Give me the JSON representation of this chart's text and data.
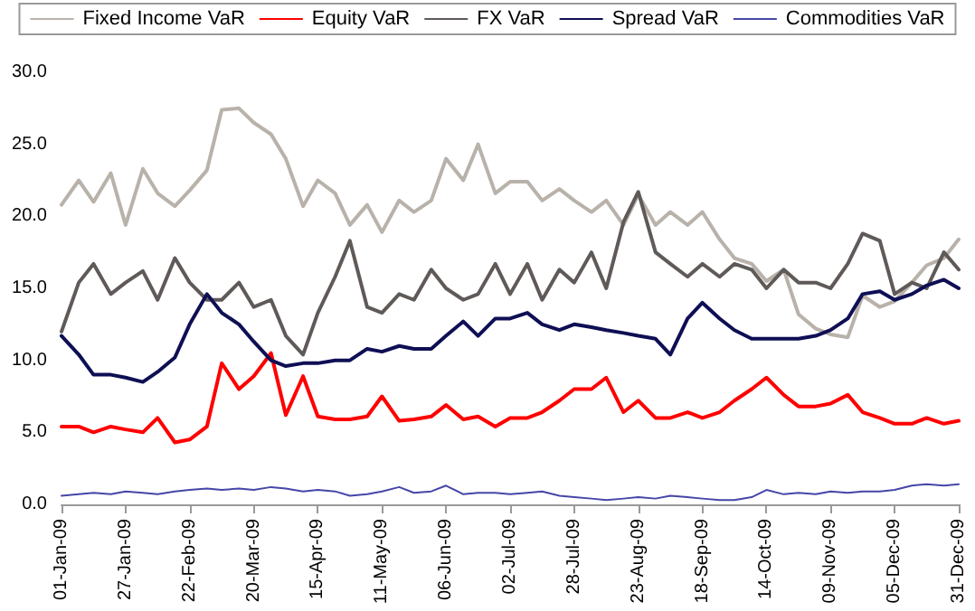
{
  "chart_data": {
    "type": "line",
    "legend": "top",
    "grid": false,
    "marker": "none",
    "line_style": "solid",
    "x": [
      "2009-01-01",
      "2009-01-08",
      "2009-01-14",
      "2009-01-21",
      "2009-01-27",
      "2009-02-03",
      "2009-02-09",
      "2009-02-16",
      "2009-02-22",
      "2009-03-01",
      "2009-03-07",
      "2009-03-14",
      "2009-03-20",
      "2009-03-27",
      "2009-04-02",
      "2009-04-09",
      "2009-04-15",
      "2009-04-22",
      "2009-04-28",
      "2009-05-05",
      "2009-05-11",
      "2009-05-18",
      "2009-05-24",
      "2009-05-31",
      "2009-06-06",
      "2009-06-13",
      "2009-06-19",
      "2009-06-26",
      "2009-07-02",
      "2009-07-09",
      "2009-07-15",
      "2009-07-22",
      "2009-07-28",
      "2009-08-04",
      "2009-08-10",
      "2009-08-17",
      "2009-08-23",
      "2009-08-30",
      "2009-09-05",
      "2009-09-12",
      "2009-09-18",
      "2009-09-25",
      "2009-10-01",
      "2009-10-08",
      "2009-10-14",
      "2009-10-21",
      "2009-10-27",
      "2009-11-03",
      "2009-11-09",
      "2009-11-16",
      "2009-11-22",
      "2009-11-29",
      "2009-12-05",
      "2009-12-12",
      "2009-12-18",
      "2009-12-25",
      "2009-12-31"
    ],
    "xlim": [
      "2009-01-01",
      "2009-12-31"
    ],
    "xticks": [
      {
        "value": "2009-01-01",
        "label": "01-Jan-09"
      },
      {
        "value": "2009-01-27",
        "label": "27-Jan-09"
      },
      {
        "value": "2009-02-22",
        "label": "22-Feb-09"
      },
      {
        "value": "2009-03-20",
        "label": "20-Mar-09"
      },
      {
        "value": "2009-04-15",
        "label": "15-Apr-09"
      },
      {
        "value": "2009-05-11",
        "label": "11-May-09"
      },
      {
        "value": "2009-06-06",
        "label": "06-Jun-09"
      },
      {
        "value": "2009-07-02",
        "label": "02-Jul-09"
      },
      {
        "value": "2009-07-28",
        "label": "28-Jul-09"
      },
      {
        "value": "2009-08-23",
        "label": "23-Aug-09"
      },
      {
        "value": "2009-09-18",
        "label": "18-Sep-09"
      },
      {
        "value": "2009-10-14",
        "label": "14-Oct-09"
      },
      {
        "value": "2009-11-09",
        "label": "09-Nov-09"
      },
      {
        "value": "2009-12-05",
        "label": "05-Dec-09"
      },
      {
        "value": "2009-12-31",
        "label": "31-Dec-09"
      }
    ],
    "ylim": [
      0,
      30
    ],
    "yticks": [
      {
        "value": 0,
        "label": "0.0"
      },
      {
        "value": 5,
        "label": "5.0"
      },
      {
        "value": 10,
        "label": "10.0"
      },
      {
        "value": 15,
        "label": "15.0"
      },
      {
        "value": 20,
        "label": "20.0"
      },
      {
        "value": 25,
        "label": "25.0"
      },
      {
        "value": 30,
        "label": "30.0"
      }
    ],
    "series": [
      {
        "name": "Fixed Income VaR",
        "color": "#b8b2aa",
        "values": [
          20.8,
          22.5,
          21.0,
          23.0,
          19.4,
          23.3,
          21.6,
          20.7,
          21.8,
          23.2,
          27.4,
          27.5,
          26.5,
          25.7,
          24.0,
          20.7,
          22.5,
          21.6,
          19.4,
          20.8,
          18.9,
          21.1,
          20.3,
          21.1,
          24.0,
          22.5,
          25.0,
          21.6,
          22.4,
          22.4,
          21.1,
          21.9,
          21.1,
          20.3,
          21.1,
          19.4,
          21.5,
          19.4,
          20.3,
          19.4,
          20.3,
          18.4,
          17.1,
          16.7,
          15.5,
          16.3,
          13.2,
          12.2,
          11.8,
          11.6,
          14.5,
          13.7,
          14.1,
          15.4,
          16.6,
          17.1,
          18.4
        ]
      },
      {
        "name": "Equity VaR",
        "color": "#ff0000",
        "values": [
          5.4,
          5.4,
          5.0,
          5.4,
          5.2,
          5.0,
          6.0,
          4.3,
          4.5,
          5.4,
          9.8,
          8.0,
          8.9,
          10.5,
          6.2,
          8.9,
          6.1,
          5.9,
          5.9,
          6.1,
          7.5,
          5.8,
          5.9,
          6.1,
          6.9,
          5.9,
          6.1,
          5.4,
          6.0,
          6.0,
          6.4,
          7.2,
          8.0,
          8.0,
          8.8,
          6.4,
          7.2,
          6.0,
          6.0,
          6.4,
          6.0,
          6.4,
          7.2,
          8.0,
          8.8,
          7.6,
          6.8,
          6.8,
          7.0,
          7.6,
          6.4,
          6.0,
          5.6,
          5.6,
          6.0,
          5.6,
          5.8
        ]
      },
      {
        "name": "FX VaR",
        "color": "#5f5a58",
        "values": [
          12.0,
          15.4,
          16.7,
          14.6,
          15.4,
          16.2,
          14.2,
          17.1,
          15.4,
          14.2,
          14.2,
          15.4,
          13.7,
          14.2,
          11.7,
          10.4,
          13.3,
          15.8,
          18.3,
          13.7,
          13.3,
          14.6,
          14.2,
          16.3,
          15.0,
          14.2,
          14.6,
          16.7,
          14.6,
          16.7,
          14.2,
          16.3,
          15.4,
          17.5,
          15.0,
          19.6,
          21.7,
          17.5,
          16.7,
          15.8,
          16.7,
          15.8,
          16.7,
          16.3,
          15.0,
          16.3,
          15.4,
          15.4,
          15.0,
          16.7,
          18.8,
          18.3,
          14.6,
          15.4,
          15.0,
          17.5,
          16.3
        ]
      },
      {
        "name": "Spread VaR",
        "color": "#0f0f55",
        "values": [
          11.7,
          10.4,
          9.0,
          9.0,
          8.8,
          8.5,
          9.2,
          10.2,
          12.5,
          14.6,
          13.3,
          12.5,
          11.3,
          10.0,
          9.6,
          9.8,
          9.8,
          10.0,
          10.0,
          10.8,
          10.6,
          11.0,
          10.8,
          10.8,
          11.7,
          12.7,
          11.7,
          12.9,
          12.9,
          13.3,
          12.5,
          12.1,
          12.5,
          12.3,
          12.1,
          11.9,
          11.7,
          11.5,
          10.4,
          12.9,
          14.0,
          12.9,
          12.1,
          11.5,
          11.5,
          11.5,
          11.5,
          11.7,
          12.1,
          12.9,
          14.6,
          14.8,
          14.2,
          14.6,
          15.2,
          15.6,
          15.0
        ]
      },
      {
        "name": "Commodities VaR",
        "color": "#4646a8",
        "values": [
          0.6,
          0.7,
          0.8,
          0.7,
          0.9,
          0.8,
          0.7,
          0.9,
          1.0,
          1.1,
          1.0,
          1.1,
          1.0,
          1.2,
          1.1,
          0.9,
          1.0,
          0.9,
          0.6,
          0.7,
          0.9,
          1.2,
          0.8,
          0.9,
          1.3,
          0.7,
          0.8,
          0.8,
          0.7,
          0.8,
          0.9,
          0.6,
          0.5,
          0.4,
          0.3,
          0.4,
          0.5,
          0.4,
          0.6,
          0.5,
          0.4,
          0.3,
          0.3,
          0.5,
          1.0,
          0.7,
          0.8,
          0.7,
          0.9,
          0.8,
          0.9,
          0.9,
          1.0,
          1.3,
          1.4,
          1.3,
          1.4
        ]
      }
    ]
  }
}
